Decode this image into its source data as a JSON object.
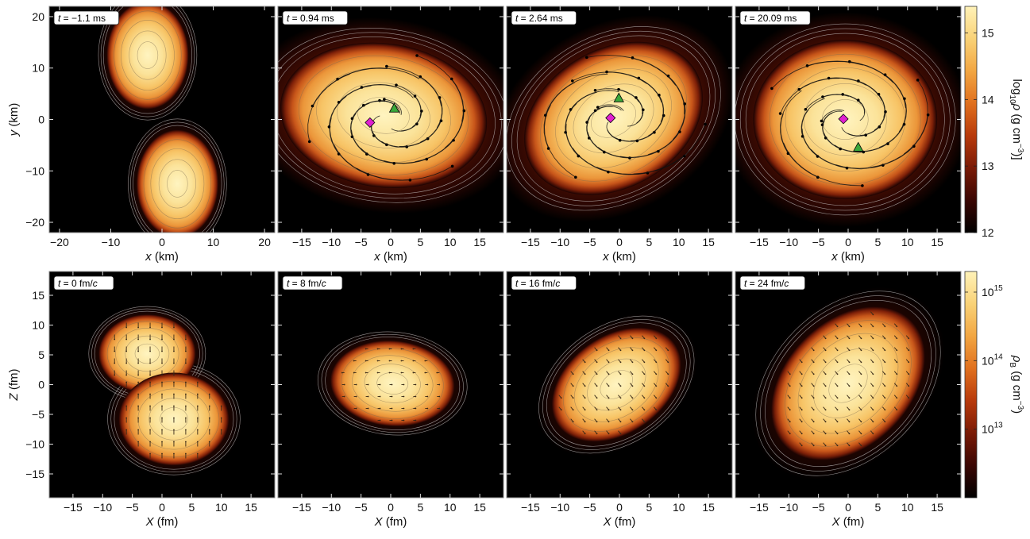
{
  "chart_data": {
    "type": "heatmap",
    "rows": [
      {
        "colorbar": {
          "label": "log10ρ (g cm⁻³)",
          "label_base": "log",
          "label_sub": "10",
          "label_sym": "ρ (g cm",
          "label_sup": "−3",
          "label_end": ")]",
          "range": [
            12,
            15.4
          ],
          "ticks": [
            "15",
            "14",
            "13",
            "12"
          ],
          "tick_values": [
            15,
            14,
            13,
            12
          ]
        },
        "ylabel": "y (km)",
        "panels": [
          {
            "time_label": "t = −1.1 ms",
            "xlabel": "x (km)",
            "xlim": [
              -22,
              22
            ],
            "ylim": [
              -22,
              22
            ],
            "xticks": [
              "−20",
              "−10",
              "0",
              "10",
              "20"
            ],
            "xtick_values": [
              -20,
              -10,
              0,
              10,
              20
            ],
            "yticks": [
              "20",
              "10",
              "0",
              "−10",
              "−20"
            ],
            "ytick_values": [
              20,
              10,
              0,
              -10,
              -20
            ],
            "markers": []
          },
          {
            "time_label": "t = 0.94 ms",
            "xlabel": "x (km)",
            "xlim": [
              -19,
              19
            ],
            "ylim": [
              -22,
              22
            ],
            "xticks": [
              "−15",
              "−10",
              "−5",
              "0",
              "5",
              "10",
              "15"
            ],
            "xtick_values": [
              -15,
              -10,
              -5,
              0,
              5,
              10,
              15
            ],
            "markers": [
              {
                "shape": "diamond",
                "x": -3.5,
                "y": -0.6,
                "color": "#e020d0"
              },
              {
                "shape": "triangle",
                "x": 0.6,
                "y": 2.2,
                "color": "#3aa83a"
              }
            ]
          },
          {
            "time_label": "t = 2.64 ms",
            "xlabel": "x (km)",
            "xlim": [
              -19,
              19
            ],
            "ylim": [
              -22,
              22
            ],
            "xticks": [
              "−15",
              "−10",
              "−5",
              "0",
              "5",
              "10",
              "15"
            ],
            "xtick_values": [
              -15,
              -10,
              -5,
              0,
              5,
              10,
              15
            ],
            "markers": [
              {
                "shape": "diamond",
                "x": -1.5,
                "y": 0.3,
                "color": "#e020d0"
              },
              {
                "shape": "triangle",
                "x": -0.1,
                "y": 4.2,
                "color": "#3aa83a"
              }
            ]
          },
          {
            "time_label": "t = 20.09 ms",
            "xlabel": "x (km)",
            "xlim": [
              -19,
              19
            ],
            "ylim": [
              -22,
              22
            ],
            "xticks": [
              "−15",
              "−10",
              "−5",
              "0",
              "5",
              "10",
              "15"
            ],
            "xtick_values": [
              -15,
              -10,
              -5,
              0,
              5,
              10,
              15
            ],
            "markers": [
              {
                "shape": "diamond",
                "x": -0.8,
                "y": 0.1,
                "color": "#e020d0"
              },
              {
                "shape": "triangle",
                "x": 1.7,
                "y": -5.4,
                "color": "#3aa83a"
              }
            ]
          }
        ]
      },
      {
        "colorbar": {
          "label": "ρB (g cm⁻³)",
          "label_sym": "ρ",
          "label_sub": "B",
          "label_mid": " (g cm",
          "label_sup": "−3",
          "label_end": ")",
          "scale": "log",
          "range": [
            1000000000000.0,
            2000000000000000.0
          ],
          "ticks": [
            "10",
            "10",
            "10"
          ],
          "tick_exponents": [
            "15",
            "14",
            "13"
          ],
          "tick_values": [
            1000000000000000.0,
            100000000000000.0,
            10000000000000.0
          ]
        },
        "ylabel": "Z (fm)",
        "panels": [
          {
            "time_label": "t = 0 fm/c",
            "xlabel": "X (fm)",
            "xlim": [
              -19,
              19
            ],
            "ylim": [
              -19,
              19
            ],
            "xticks": [
              "−15",
              "−10",
              "−5",
              "0",
              "5",
              "10",
              "15"
            ],
            "xtick_values": [
              -15,
              -10,
              -5,
              0,
              5,
              10,
              15
            ],
            "yticks": [
              "15",
              "10",
              "5",
              "0",
              "−5",
              "−10",
              "−15"
            ],
            "ytick_values": [
              15,
              10,
              5,
              0,
              -5,
              -10,
              -15
            ]
          },
          {
            "time_label": "t = 8 fm/c",
            "xlabel": "X (fm)",
            "xlim": [
              -19,
              19
            ],
            "ylim": [
              -19,
              19
            ],
            "xticks": [
              "−15",
              "−10",
              "−5",
              "0",
              "5",
              "10",
              "15"
            ],
            "xtick_values": [
              -15,
              -10,
              -5,
              0,
              5,
              10,
              15
            ]
          },
          {
            "time_label": "t = 16 fm/c",
            "xlabel": "X (fm)",
            "xlim": [
              -19,
              19
            ],
            "ylim": [
              -19,
              19
            ],
            "xticks": [
              "−15",
              "−10",
              "−5",
              "0",
              "5",
              "10",
              "15"
            ],
            "xtick_values": [
              -15,
              -10,
              -5,
              0,
              5,
              10,
              15
            ]
          },
          {
            "time_label": "t = 24 fm/c",
            "xlabel": "X (fm)",
            "xlim": [
              -19,
              19
            ],
            "ylim": [
              -19,
              19
            ],
            "xticks": [
              "−15",
              "−10",
              "−5",
              "0",
              "5",
              "10",
              "15"
            ],
            "xtick_values": [
              -15,
              -10,
              -5,
              0,
              5,
              10,
              15
            ]
          }
        ]
      }
    ],
    "colors": {
      "background": "#000000",
      "colormap": [
        "#000000",
        "#3a0603",
        "#7a1a06",
        "#b83a0c",
        "#e0701e",
        "#f2a642",
        "#f9d277",
        "#fff2b8"
      ],
      "contour": "#cfcfcf",
      "marker_diamond": "#e020d0",
      "marker_triangle": "#3aa83a"
    }
  }
}
